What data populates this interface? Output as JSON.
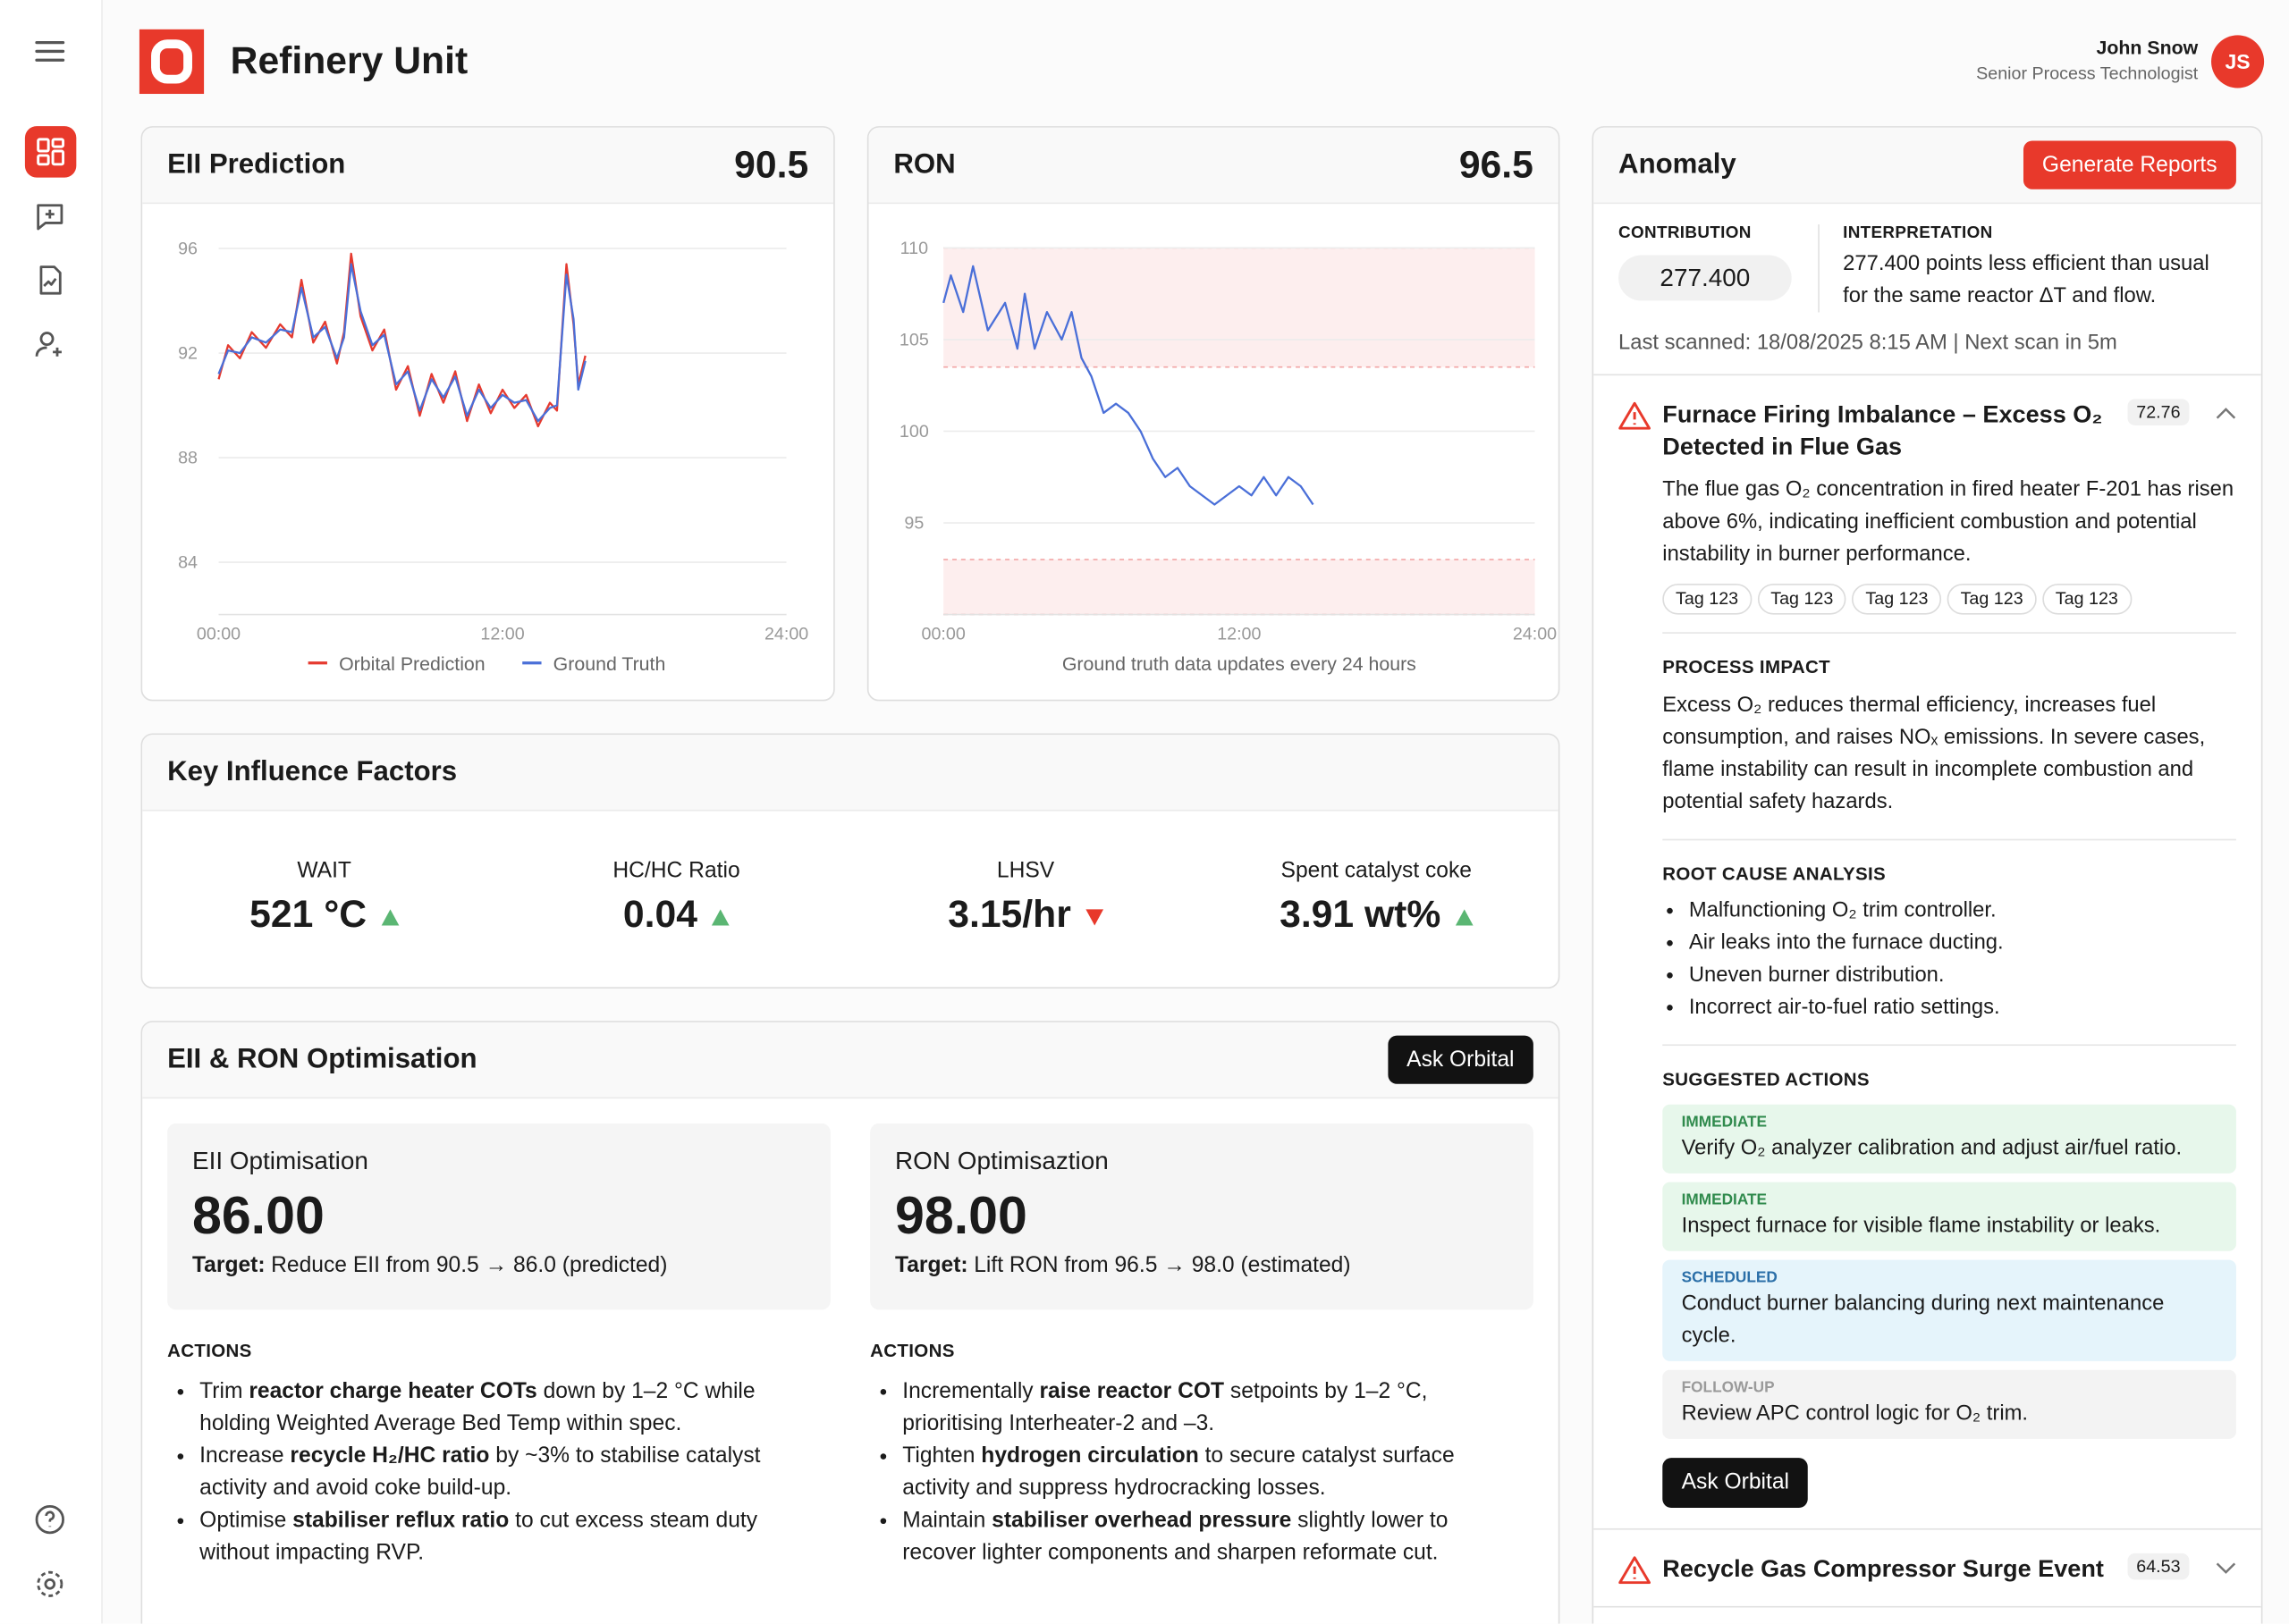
{
  "header": {
    "title": "Refinery Unit",
    "user_name": "John Snow",
    "user_role": "Senior Process Technologist",
    "avatar": "JS"
  },
  "chart_data": [
    {
      "type": "line",
      "title": "EII Prediction",
      "headline": "90.5",
      "xlim": [
        0,
        24
      ],
      "xticks": [
        {
          "value": 0,
          "label": "00:00"
        },
        {
          "value": 12,
          "label": "12:00"
        },
        {
          "value": 24,
          "label": "24:00"
        }
      ],
      "ylim": [
        82,
        97.2
      ],
      "yticks": [
        84,
        88,
        92,
        96
      ],
      "grid": true,
      "legend": "bottom",
      "x": [
        0,
        0.4,
        0.9,
        1.4,
        2,
        2.6,
        3.1,
        3.5,
        4,
        4.5,
        5,
        5.3,
        5.6,
        6,
        6.5,
        7,
        7.5,
        8,
        8.5,
        9,
        9.5,
        10,
        10.5,
        11,
        11.5,
        12,
        12.5,
        13,
        13.5,
        14,
        14.3,
        14.7,
        15,
        15.2,
        15.5
      ],
      "series": [
        {
          "name": "Orbital Prediction",
          "color": "#e53a2f",
          "values": [
            91,
            92.3,
            91.8,
            92.8,
            92.2,
            93.1,
            92.6,
            94.8,
            92.4,
            93.2,
            91.6,
            92.8,
            95.8,
            93.4,
            92.1,
            92.9,
            90.6,
            91.5,
            89.6,
            91.2,
            90.1,
            91.3,
            89.4,
            90.8,
            89.7,
            90.6,
            89.9,
            90.4,
            89.2,
            90.1,
            89.8,
            95.4,
            93.1,
            90.8,
            91.9
          ]
        },
        {
          "name": "Ground Truth",
          "color": "#4a6fd8",
          "values": [
            91.2,
            92.1,
            92,
            92.6,
            92.4,
            92.9,
            92.8,
            94.5,
            92.6,
            93,
            91.8,
            92.6,
            95.4,
            93.6,
            92.3,
            92.7,
            90.8,
            91.3,
            89.8,
            91,
            90.3,
            91.1,
            89.6,
            90.6,
            89.9,
            90.4,
            90.1,
            90.2,
            89.4,
            89.9,
            90,
            95,
            93.3,
            90.6,
            91.7
          ]
        }
      ]
    },
    {
      "type": "line",
      "title": "RON",
      "headline": "96.5",
      "note": "Ground truth data updates every 24 hours",
      "xlim": [
        0,
        24
      ],
      "xticks": [
        {
          "value": 0,
          "label": "00:00"
        },
        {
          "value": 12,
          "label": "12:00"
        },
        {
          "value": 24,
          "label": "24:00"
        }
      ],
      "ylim": [
        90,
        110
      ],
      "yticks": [
        95,
        100,
        105,
        110
      ],
      "grid": true,
      "bands": [
        [
          103.5,
          110
        ],
        [
          90,
          93
        ]
      ],
      "band_color": "#fdeeee",
      "band_edge_color": "#f2a5a5",
      "x": [
        0,
        0.3,
        0.8,
        1.2,
        1.8,
        2.5,
        3,
        3.3,
        3.7,
        4.2,
        4.8,
        5.2,
        5.6,
        6,
        6.5,
        7,
        7.5,
        8,
        8.5,
        9,
        9.5,
        10,
        10.5,
        11,
        11.5,
        12,
        12.5,
        13,
        13.5,
        14,
        14.5,
        15
      ],
      "series": [
        {
          "color": "#4a6fd8",
          "values": [
            107,
            108.5,
            106.5,
            109,
            105.5,
            107,
            104.5,
            107.5,
            104.5,
            106.5,
            105,
            106.5,
            104,
            103,
            101,
            101.5,
            101,
            100,
            98.5,
            97.5,
            98,
            97,
            96.5,
            96,
            96.5,
            97,
            96.5,
            97.5,
            96.5,
            97.5,
            97,
            96
          ]
        }
      ]
    }
  ],
  "key_factors": {
    "title": "Key Influence Factors",
    "items": [
      {
        "label": "WAIT",
        "value": "521 °C",
        "trend": "up"
      },
      {
        "label": "HC/HC Ratio",
        "value": "0.04",
        "trend": "up"
      },
      {
        "label": "LHSV",
        "value": "3.15/hr",
        "trend": "down"
      },
      {
        "label": "Spent catalyst coke",
        "value": "3.91 wt%",
        "trend": "up"
      }
    ]
  },
  "optimisation": {
    "title": "EII & RON Optimisation",
    "button": "Ask Orbital",
    "panels": [
      {
        "title": "EII Optimisation",
        "value": "86.00",
        "target_label": "Target:",
        "target": "Reduce EII from 90.5 → 86.0 (predicted)",
        "actions_label": "ACTIONS",
        "actions": [
          [
            "Trim ",
            "reactor charge heater COTs",
            " down by 1–2 °C while holding Weighted Average Bed Temp within spec."
          ],
          [
            "Increase ",
            "recycle H₂/HC ratio",
            " by ~3% to stabilise catalyst activity and avoid coke build-up."
          ],
          [
            "Optimise ",
            "stabiliser reflux ratio",
            " to cut excess steam duty without impacting RVP."
          ]
        ]
      },
      {
        "title": "RON Optimisaztion",
        "value": "98.00",
        "target_label": "Target:",
        "target": "Lift RON from 96.5 → 98.0 (estimated)",
        "actions_label": "ACTIONS",
        "actions": [
          [
            "Incrementally ",
            "raise reactor COT",
            " setpoints by 1–2 °C, prioritising Interheater-2 and –3."
          ],
          [
            "Tighten ",
            "hydrogen circulation",
            " to secure catalyst surface activity and suppress hydrocracking losses."
          ],
          [
            "Maintain ",
            "stabiliser overhead pressure",
            " slightly lower to recover lighter components and sharpen reformate cut."
          ]
        ]
      }
    ]
  },
  "anomaly": {
    "title": "Anomaly",
    "button": "Generate Reports",
    "contribution_label": "CONTRIBUTION",
    "contribution": "277.400",
    "interpretation_label": "INTERPRETATION",
    "interpretation": "277.400 points less efficient than usual for the same reactor ΔT and flow.",
    "scan": "Last scanned: 18/08/2025 8:15 AM | Next scan in 5m",
    "items": [
      {
        "title": "Furnace Firing Imbalance – Excess O₂ Detected in Flue Gas",
        "score": "72.76",
        "expanded": true,
        "description": "The flue gas O₂ concentration in fired heater F-201 has risen above 6%, indicating inefficient combustion and potential instability in burner performance.",
        "tags": [
          "Tag 123",
          "Tag 123",
          "Tag 123",
          "Tag 123",
          "Tag 123"
        ],
        "impact_heading": "PROCESS IMPACT",
        "impact": "Excess O₂ reduces thermal efficiency, increases fuel consumption, and raises NOₓ emissions. In severe cases, flame instability can result in incomplete combustion and potential safety hazards.",
        "cause_heading": "ROOT CAUSE ANALYSIS",
        "causes": [
          "Malfunctioning O₂ trim controller.",
          "Air leaks into the furnace ducting.",
          "Uneven burner distribution.",
          "Incorrect air-to-fuel ratio settings."
        ],
        "actions_heading": "SUGGESTED ACTIONS",
        "actions": [
          {
            "level": "IMMEDIATE",
            "text": "Verify O₂ analyzer calibration and adjust air/fuel ratio.",
            "color": "#e7f7eb",
            "label_color": "#2f8a4c"
          },
          {
            "level": "IMMEDIATE",
            "text": "Inspect furnace for visible flame instability or leaks.",
            "color": "#e7f7eb",
            "label_color": "#2f8a4c"
          },
          {
            "level": "SCHEDULED",
            "text": "Conduct burner balancing during next maintenance cycle.",
            "color": "#e5f4fb",
            "label_color": "#2b6fa8"
          },
          {
            "level": "FOLLOW-UP",
            "text": "Review APC control logic for O₂ trim.",
            "color": "#f3f3f3",
            "label_color": "#9a9a9a"
          }
        ],
        "button": "Ask Orbital"
      },
      {
        "title": "Recycle Gas Compressor Surge Event",
        "score": "64.53",
        "expanded": false
      }
    ]
  }
}
